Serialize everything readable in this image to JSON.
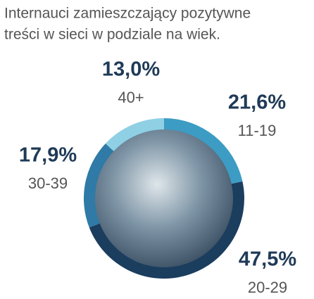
{
  "chart_data": {
    "type": "pie",
    "title": [
      "Internauci zamieszczający pozytywne",
      "treści w sieci w podziale na wiek."
    ],
    "categories": [
      "11-19",
      "20-29",
      "30-39",
      "40+"
    ],
    "values": [
      21.6,
      47.5,
      17.9,
      13.0
    ],
    "value_labels": [
      "21,6%",
      "47,5%",
      "17,9%",
      "13,0%"
    ],
    "colors": [
      "#3d9cc4",
      "#1b3d5e",
      "#2f7aa6",
      "#8fd0e4"
    ]
  }
}
